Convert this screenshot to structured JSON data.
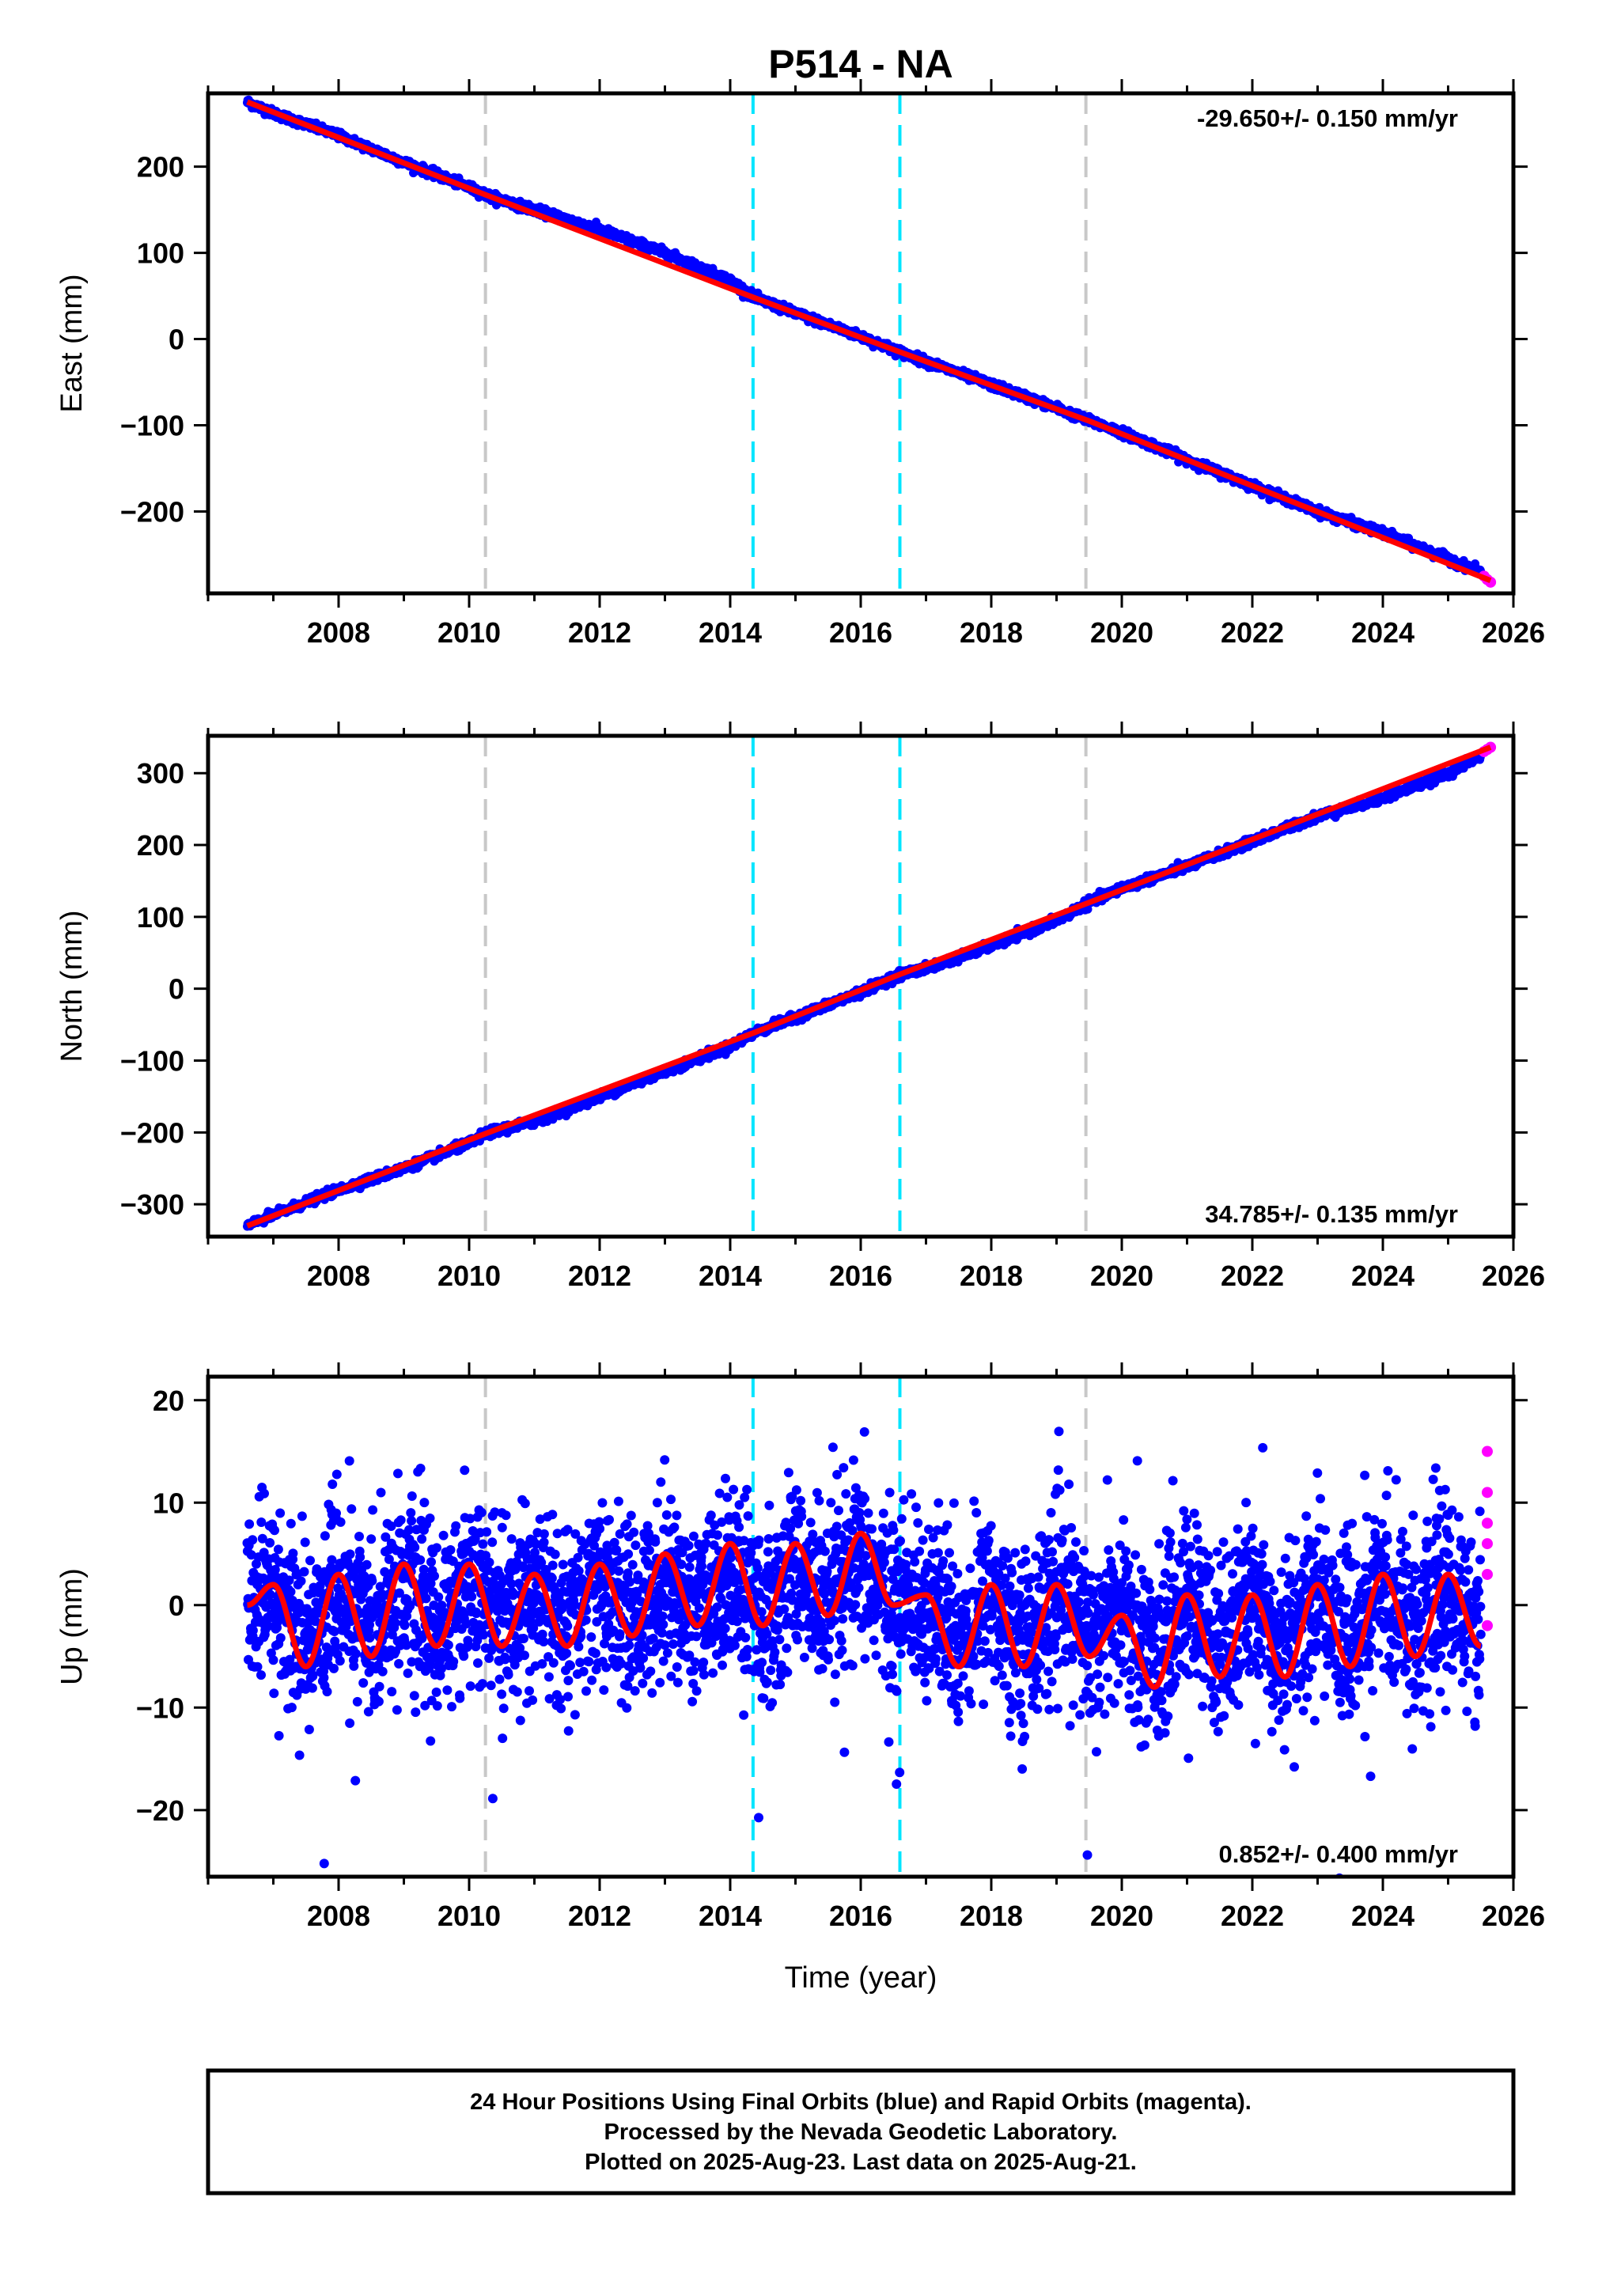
{
  "title": "P514 - NA",
  "xlabel": "Time (year)",
  "footer": {
    "line1": "24 Hour Positions Using Final Orbits (blue) and Rapid Orbits (magenta).",
    "line2": "Processed by the Nevada Geodetic Laboratory.",
    "line3": "Plotted on 2025-Aug-23. Last data on 2025-Aug-21."
  },
  "colors": {
    "final": "#0000ff",
    "rapid": "#ff00ff",
    "model": "#ff0000",
    "equipment_change": "#c8c8c8",
    "earthquake": "#00e5ff"
  },
  "chart_data": [
    {
      "type": "scatter",
      "ylabel": "East (mm)",
      "xlim": [
        2006.0,
        2026.0
      ],
      "ylim": [
        -295,
        285
      ],
      "xticks": [
        2008,
        2010,
        2012,
        2014,
        2016,
        2018,
        2020,
        2022,
        2024,
        2026
      ],
      "yticks": [
        -200,
        -100,
        0,
        100,
        200
      ],
      "rate": "-29.650+/- 0.150 mm/yr",
      "rate_position": "top-right",
      "series": [
        {
          "role": "final",
          "x": [
            2006.6,
            2007.0,
            2008.0,
            2009.0,
            2010.0,
            2010.3,
            2011.0,
            2012.0,
            2013.0,
            2014.0,
            2014.4,
            2015.0,
            2016.0,
            2016.6,
            2017.0,
            2018.0,
            2019.0,
            2019.5,
            2020.0,
            2021.0,
            2022.0,
            2023.0,
            2024.0,
            2025.0,
            2025.5
          ],
          "y": [
            275,
            262,
            236,
            205,
            176,
            166,
            150,
            127,
            100,
            68,
            47,
            30,
            3,
            -15,
            -26,
            -53,
            -80,
            -95,
            -108,
            -140,
            -170,
            -200,
            -225,
            -255,
            -270
          ]
        },
        {
          "role": "rapid",
          "x": [
            2025.55,
            2025.6,
            2025.65
          ],
          "y": [
            -275,
            -279,
            -282
          ]
        }
      ],
      "model": {
        "x": [
          2006.6,
          2010.3,
          2014.4,
          2016.6,
          2019.5,
          2025.65
        ],
        "y": [
          275,
          166,
          47,
          -15,
          -95,
          -280
        ]
      },
      "vlines": [
        {
          "x": 2010.25,
          "kind": "equipment_change"
        },
        {
          "x": 2014.35,
          "kind": "earthquake"
        },
        {
          "x": 2016.6,
          "kind": "earthquake"
        },
        {
          "x": 2019.45,
          "kind": "equipment_change"
        }
      ]
    },
    {
      "type": "scatter",
      "ylabel": "North (mm)",
      "xlim": [
        2006.0,
        2026.0
      ],
      "ylim": [
        -345,
        352
      ],
      "xticks": [
        2008,
        2010,
        2012,
        2014,
        2016,
        2018,
        2020,
        2022,
        2024,
        2026
      ],
      "yticks": [
        -300,
        -200,
        -100,
        0,
        100,
        200,
        300
      ],
      "rate": "34.785+/- 0.135 mm/yr",
      "rate_position": "bottom-right",
      "series": [
        {
          "role": "final",
          "x": [
            2006.6,
            2007.0,
            2008.0,
            2009.0,
            2010.0,
            2010.3,
            2011.0,
            2012.0,
            2013.0,
            2014.0,
            2014.4,
            2015.0,
            2016.0,
            2016.6,
            2017.0,
            2018.0,
            2019.0,
            2019.5,
            2020.0,
            2021.0,
            2022.0,
            2023.0,
            2024.0,
            2025.0,
            2025.5
          ],
          "y": [
            -330,
            -315,
            -280,
            -250,
            -215,
            -200,
            -185,
            -150,
            -115,
            -80,
            -60,
            -40,
            -5,
            20,
            28,
            60,
            95,
            120,
            140,
            170,
            205,
            240,
            265,
            300,
            325
          ]
        },
        {
          "role": "rapid",
          "x": [
            2025.55,
            2025.6,
            2025.65
          ],
          "y": [
            330,
            333,
            336
          ]
        }
      ],
      "model": {
        "x": [
          2006.6,
          2010.3,
          2014.4,
          2016.6,
          2019.5,
          2025.65
        ],
        "y": [
          -330,
          -200,
          -60,
          20,
          120,
          336
        ]
      },
      "vlines": [
        {
          "x": 2010.25,
          "kind": "equipment_change"
        },
        {
          "x": 2014.35,
          "kind": "earthquake"
        },
        {
          "x": 2016.6,
          "kind": "earthquake"
        },
        {
          "x": 2019.45,
          "kind": "equipment_change"
        }
      ]
    },
    {
      "type": "scatter",
      "ylabel": "Up (mm)",
      "xlim": [
        2006.0,
        2026.0
      ],
      "ylim": [
        -26.5,
        22.3
      ],
      "xticks": [
        2008,
        2010,
        2012,
        2014,
        2016,
        2018,
        2020,
        2022,
        2024,
        2026
      ],
      "yticks": [
        -20,
        -10,
        0,
        10,
        20
      ],
      "rate": "0.852+/- 0.400 mm/yr",
      "rate_position": "bottom-right",
      "series": [
        {
          "role": "final",
          "x": [
            2006.6,
            2007.0,
            2007.5,
            2008.0,
            2008.5,
            2009.0,
            2009.5,
            2010.0,
            2010.5,
            2011.0,
            2011.5,
            2012.0,
            2012.5,
            2013.0,
            2013.5,
            2014.0,
            2014.5,
            2015.0,
            2015.5,
            2016.0,
            2016.5,
            2017.0,
            2017.5,
            2018.0,
            2018.5,
            2019.0,
            2019.5,
            2020.0,
            2020.5,
            2021.0,
            2021.5,
            2022.0,
            2022.5,
            2023.0,
            2023.5,
            2024.0,
            2024.5,
            2025.0,
            2025.5
          ],
          "y": [
            0,
            2,
            -6,
            3,
            -5,
            4,
            -4,
            4,
            -4,
            3,
            -4,
            4,
            -3,
            5,
            -2,
            6,
            -2,
            6,
            -1,
            7,
            0,
            1,
            -6,
            2,
            -6,
            2,
            -5,
            -1,
            -8,
            1,
            -7,
            1,
            -7,
            2,
            -6,
            3,
            -5,
            3,
            -4
          ]
        },
        {
          "role": "rapid",
          "x": [
            2025.6,
            2025.6,
            2025.6,
            2025.6,
            2025.6,
            2025.6
          ],
          "y": [
            15,
            11,
            8,
            6,
            3,
            -2
          ]
        }
      ],
      "model": {
        "x": [
          2006.6,
          2007.0,
          2007.5,
          2008.0,
          2008.5,
          2009.0,
          2009.5,
          2010.0,
          2010.5,
          2011.0,
          2011.5,
          2012.0,
          2012.5,
          2013.0,
          2013.5,
          2014.0,
          2014.5,
          2015.0,
          2015.5,
          2016.0,
          2016.5,
          2017.0,
          2017.5,
          2018.0,
          2018.5,
          2019.0,
          2019.5,
          2020.0,
          2020.5,
          2021.0,
          2021.5,
          2022.0,
          2022.5,
          2023.0,
          2023.5,
          2024.0,
          2024.5,
          2025.0,
          2025.5
        ],
        "y": [
          0,
          2,
          -6,
          3,
          -5,
          4,
          -4,
          4,
          -4,
          3,
          -4,
          4,
          -3,
          5,
          -2,
          6,
          -2,
          6,
          -1,
          7,
          0,
          1,
          -6,
          2,
          -6,
          2,
          -5,
          -1,
          -8,
          1,
          -7,
          1,
          -7,
          2,
          -6,
          3,
          -5,
          3,
          -4
        ]
      },
      "vlines": [
        {
          "x": 2010.25,
          "kind": "equipment_change"
        },
        {
          "x": 2014.35,
          "kind": "earthquake"
        },
        {
          "x": 2016.6,
          "kind": "earthquake"
        },
        {
          "x": 2019.45,
          "kind": "equipment_change"
        }
      ]
    }
  ]
}
